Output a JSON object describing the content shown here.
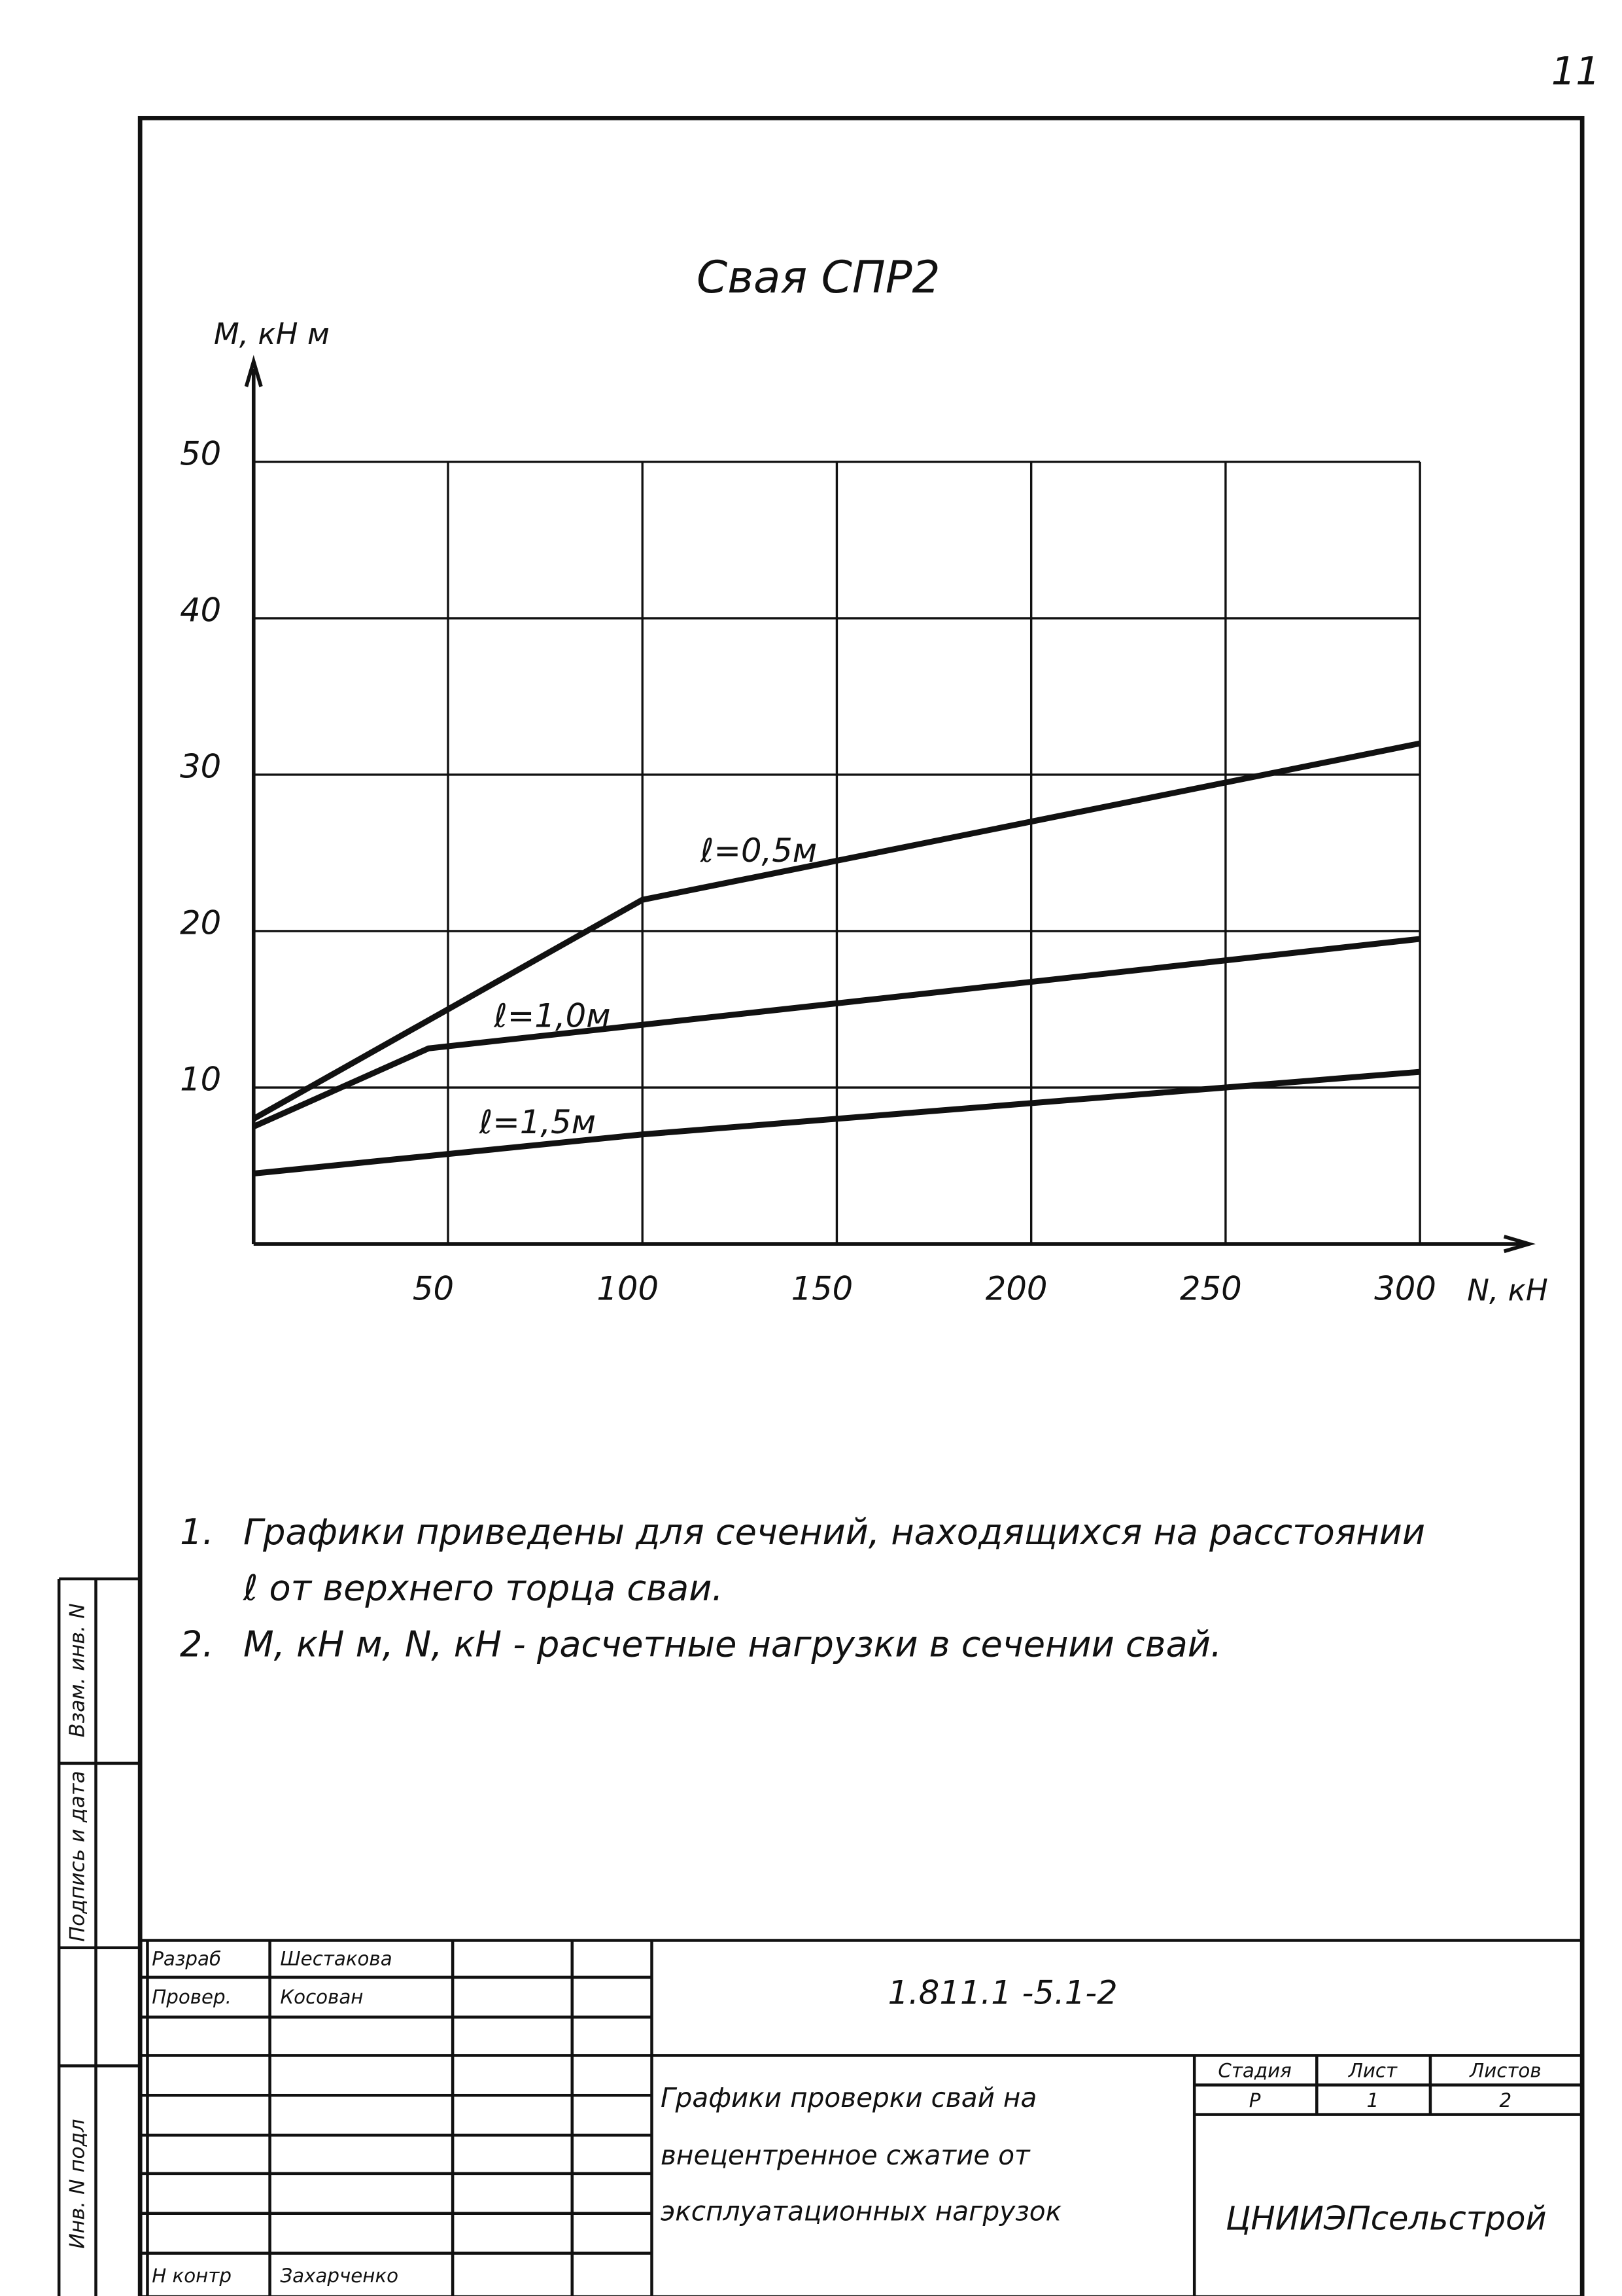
{
  "page_number": "11",
  "chart_data": {
    "type": "line",
    "title": "Свая СПР2",
    "y_label": "M, кН м",
    "x_label": "N, кН",
    "xlim": [
      0,
      300
    ],
    "xticks": [
      50,
      100,
      150,
      200,
      250,
      300
    ],
    "ylim": [
      0,
      50
    ],
    "yticks": [
      10,
      20,
      30,
      40,
      50
    ],
    "grid": true,
    "series": [
      {
        "name": "ℓ=0,5м",
        "color": "#111111",
        "x": [
          0,
          100,
          300
        ],
        "values": [
          8,
          22,
          32
        ]
      },
      {
        "name": "ℓ=1,0м",
        "color": "#111111",
        "x": [
          0,
          45,
          300
        ],
        "values": [
          7.5,
          12.5,
          19.5
        ]
      },
      {
        "name": "ℓ=1,5м",
        "color": "#111111",
        "x": [
          0,
          100,
          300
        ],
        "values": [
          4.5,
          7,
          11
        ]
      }
    ]
  },
  "notes": [
    {
      "number": "1.",
      "lines": [
        "Графики приведены для сечений, находящихся на расстоянии",
        "ℓ от верхнего торца сваи."
      ]
    },
    {
      "number": "2.",
      "lines": [
        "M, кН м,  N, кН - расчетные нагрузки в сечении свай."
      ]
    }
  ],
  "side_stamp": [
    "Взам. инв. N",
    "Подпись и дата",
    "Инв. N подл"
  ],
  "title_block": {
    "rows": [
      [
        "Разраб",
        "Шестакова"
      ],
      [
        "Провер.",
        "Косован"
      ],
      [
        "Н контр",
        "Захарченко"
      ]
    ],
    "code": "1.811.1 -5.1-2",
    "title_lines": [
      "Графики проверки свай на",
      "внецентренное сжатие от",
      "эксплуатационных нагрузок"
    ],
    "stage_headers": [
      "Стадия",
      "Лист",
      "Листов"
    ],
    "stage_values": [
      "Р",
      "1",
      "2"
    ],
    "organization": "ЦНИИЭПсельстрой"
  }
}
